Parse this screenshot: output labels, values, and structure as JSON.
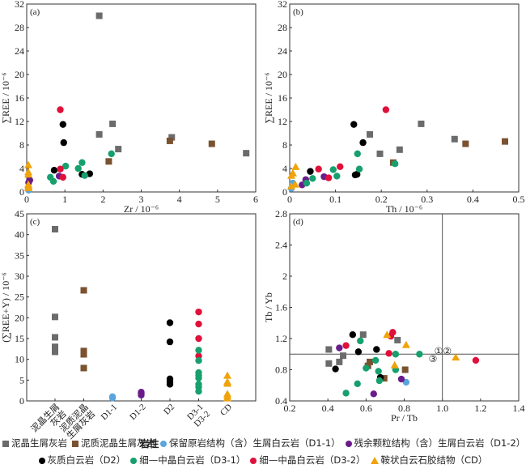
{
  "chart_data": [
    {
      "id": "a",
      "type": "scatter",
      "panel_label": "(a)",
      "xlabel": "Zr / 10⁻⁶",
      "ylabel": "∑REE / 10⁻⁶",
      "xlim": [
        0,
        6
      ],
      "ylim": [
        0,
        32
      ],
      "xticks": [
        0,
        1,
        2,
        3,
        4,
        5,
        6
      ],
      "yticks": [
        0,
        4,
        8,
        12,
        16,
        20,
        24,
        28,
        32
      ],
      "grid": false,
      "series": [
        {
          "group": "mudstone_bioclastic_limestone",
          "points": [
            [
              1.9,
              30.0
            ],
            [
              1.9,
              9.8
            ],
            [
              2.25,
              11.6
            ],
            [
              2.4,
              7.3
            ],
            [
              3.8,
              9.3
            ],
            [
              5.75,
              6.6
            ]
          ]
        },
        {
          "group": "argillaceous_bioclastic_limestone",
          "points": [
            [
              2.15,
              5.2
            ],
            [
              3.75,
              8.7
            ],
            [
              4.85,
              8.2
            ]
          ]
        },
        {
          "group": "D1-1",
          "points": [
            [
              0.03,
              0.6
            ],
            [
              0.05,
              0.3
            ]
          ]
        },
        {
          "group": "D1-2",
          "points": [
            [
              0.08,
              2.0
            ],
            [
              0.05,
              1.6
            ],
            [
              0.85,
              2.7
            ]
          ]
        },
        {
          "group": "D2",
          "points": [
            [
              0.95,
              11.5
            ],
            [
              0.97,
              8.4
            ],
            [
              0.72,
              3.7
            ],
            [
              1.45,
              3.0
            ],
            [
              1.65,
              3.1
            ]
          ]
        },
        {
          "group": "D3-1",
          "points": [
            [
              0.62,
              2.5
            ],
            [
              0.7,
              1.8
            ],
            [
              1.02,
              4.4
            ],
            [
              1.35,
              4.0
            ],
            [
              1.45,
              5.0
            ],
            [
              1.52,
              2.8
            ],
            [
              2.22,
              6.5
            ]
          ]
        },
        {
          "group": "D3-2",
          "points": [
            [
              0.88,
              14.0
            ],
            [
              0.88,
              3.9
            ],
            [
              0.95,
              2.5
            ]
          ]
        },
        {
          "group": "CD",
          "points": [
            [
              0.0,
              4.6
            ],
            [
              0.02,
              3.4
            ],
            [
              0.03,
              3.0
            ],
            [
              0.02,
              1.3
            ],
            [
              0.05,
              1.0
            ],
            [
              0.0,
              0.7
            ]
          ]
        }
      ]
    },
    {
      "id": "b",
      "type": "scatter",
      "panel_label": "(b)",
      "xlabel": "Th / 10⁻⁶",
      "ylabel": "∑REE / 10⁻⁶",
      "xlim": [
        0,
        0.5
      ],
      "ylim": [
        0,
        32
      ],
      "xticks": [
        0,
        0.1,
        0.2,
        0.3,
        0.4,
        0.5
      ],
      "yticks": [
        0,
        4,
        8,
        12,
        16,
        20,
        24,
        28,
        32
      ],
      "grid": false,
      "series": [
        {
          "group": "mudstone_bioclastic_limestone",
          "points": [
            [
              0.175,
              9.8
            ],
            [
              0.197,
              6.5
            ],
            [
              0.24,
              7.2
            ],
            [
              0.287,
              11.6
            ],
            [
              0.36,
              9.0
            ]
          ]
        },
        {
          "group": "argillaceous_bioclastic_limestone",
          "points": [
            [
              0.226,
              5.0
            ],
            [
              0.384,
              8.2
            ],
            [
              0.47,
              8.6
            ]
          ]
        },
        {
          "group": "D1-1",
          "points": [
            [
              0.002,
              0.6
            ],
            [
              0.007,
              1.5
            ]
          ]
        },
        {
          "group": "D1-2",
          "points": [
            [
              0.027,
              1.2
            ],
            [
              0.035,
              2.1
            ],
            [
              0.075,
              2.6
            ]
          ]
        },
        {
          "group": "D2",
          "points": [
            [
              0.14,
              11.5
            ],
            [
              0.16,
              8.4
            ],
            [
              0.045,
              3.5
            ],
            [
              0.143,
              2.9
            ],
            [
              0.147,
              3.0
            ]
          ]
        },
        {
          "group": "D3-1",
          "points": [
            [
              0.037,
              1.5
            ],
            [
              0.05,
              2.3
            ],
            [
              0.095,
              3.8
            ],
            [
              0.103,
              2.7
            ],
            [
              0.148,
              6.5
            ],
            [
              0.152,
              3.9
            ],
            [
              0.23,
              4.8
            ]
          ]
        },
        {
          "group": "D3-2",
          "points": [
            [
              0.21,
              14.0
            ],
            [
              0.063,
              3.9
            ],
            [
              0.085,
              2.4
            ],
            [
              0.11,
              4.3
            ]
          ]
        },
        {
          "group": "CD",
          "points": [
            [
              0.013,
              4.3
            ],
            [
              0.007,
              3.2
            ],
            [
              0.002,
              2.8
            ],
            [
              0.012,
              1.3
            ],
            [
              0.0,
              1.0
            ]
          ]
        }
      ]
    },
    {
      "id": "c",
      "type": "scatter",
      "panel_label": "(c)",
      "xlabel": "岩性",
      "ylabel": "(∑REE+Y) / 10⁻⁶",
      "ylim": [
        0,
        45
      ],
      "yticks": [
        0,
        5,
        10,
        15,
        20,
        25,
        30,
        35,
        40,
        45
      ],
      "categories": [
        [
          "泥晶生屑",
          "灰岩"
        ],
        [
          "泥质泥晶",
          "生屑灰岩"
        ],
        [
          "D1-1"
        ],
        [
          "D1-2"
        ],
        [
          "D2"
        ],
        [
          "D3-1",
          "D3-2"
        ],
        [
          "CD"
        ]
      ],
      "grid": false,
      "series": [
        {
          "group": "mudstone_bioclastic_limestone",
          "category": 0,
          "values": [
            41.3,
            20.2,
            15.3,
            13.0,
            12.5,
            11.8
          ]
        },
        {
          "group": "argillaceous_bioclastic_limestone",
          "category": 1,
          "values": [
            26.6,
            12.0,
            11.2,
            7.9
          ]
        },
        {
          "group": "D1-1",
          "category": 2,
          "values": [
            1.0,
            0.7
          ]
        },
        {
          "group": "D1-2",
          "category": 3,
          "values": [
            2.1,
            1.8,
            1.4
          ]
        },
        {
          "group": "D2",
          "category": 4,
          "values": [
            18.8,
            14.2,
            5.3,
            4.6,
            4.0
          ]
        },
        {
          "group": "D3-2",
          "category": 5,
          "values": [
            21.4,
            18.5,
            15.0,
            10.8
          ]
        },
        {
          "group": "D3-1",
          "category": 5,
          "values": [
            12.2,
            9.7,
            6.8,
            6.1,
            5.5,
            4.0,
            3.3,
            2.3
          ]
        },
        {
          "group": "CD",
          "category": 6,
          "values": [
            6.1,
            4.6,
            4.2,
            1.7,
            1.2,
            0.7
          ]
        }
      ]
    },
    {
      "id": "d",
      "type": "scatter",
      "panel_label": "(d)",
      "xlabel": "Pr / Tb",
      "ylabel": "Tb / Yb",
      "xlim": [
        0.2,
        1.4
      ],
      "ylim": [
        0.4,
        2.8
      ],
      "xticks": [
        0.2,
        0.4,
        0.6,
        0.8,
        1.0,
        1.2,
        1.4
      ],
      "yticks": [
        0.4,
        0.8,
        1.2,
        1.6,
        2.0,
        2.4,
        2.8
      ],
      "grid": false,
      "reference_lines": {
        "x": 1.0,
        "y": 1.0
      },
      "annotations": [
        {
          "text": "①②",
          "x": 1.0,
          "y": 1.04
        },
        {
          "text": "③",
          "x": 0.97,
          "y": 0.94
        }
      ],
      "series": [
        {
          "group": "mudstone_bioclastic_limestone",
          "points": [
            [
              0.405,
              1.06
            ],
            [
              0.405,
              0.88
            ],
            [
              0.46,
              0.9
            ],
            [
              0.48,
              0.98
            ],
            [
              0.585,
              1.25
            ],
            [
              0.765,
              1.18
            ]
          ]
        },
        {
          "group": "argillaceous_bioclastic_limestone",
          "points": [
            [
              0.61,
              0.85
            ],
            [
              0.62,
              0.9
            ],
            [
              0.695,
              0.69
            ],
            [
              0.805,
              0.8
            ]
          ]
        },
        {
          "group": "D1-1",
          "points": [
            [
              0.81,
              0.64
            ]
          ]
        },
        {
          "group": "D1-2",
          "points": [
            [
              0.46,
              1.08
            ],
            [
              0.64,
              0.49
            ],
            [
              0.785,
              0.68
            ]
          ]
        },
        {
          "group": "D2",
          "points": [
            [
              0.53,
              1.25
            ],
            [
              0.56,
              1.03
            ],
            [
              0.655,
              1.06
            ],
            [
              0.44,
              0.81
            ],
            [
              0.675,
              0.7
            ]
          ]
        },
        {
          "group": "D3-1",
          "points": [
            [
              0.57,
              1.17
            ],
            [
              0.495,
              0.5
            ],
            [
              0.555,
              0.62
            ],
            [
              0.6,
              0.82
            ],
            [
              0.65,
              0.92
            ],
            [
              0.665,
              0.78
            ],
            [
              0.67,
              0.66
            ],
            [
              0.755,
              1.0
            ],
            [
              0.755,
              0.8
            ],
            [
              0.88,
              1.0
            ]
          ]
        },
        {
          "group": "D3-2",
          "points": [
            [
              0.495,
              1.11
            ],
            [
              0.72,
              1.01
            ],
            [
              0.73,
              1.23
            ],
            [
              0.74,
              1.28
            ],
            [
              1.175,
              0.92
            ]
          ]
        },
        {
          "group": "CD",
          "points": [
            [
              0.71,
              1.25
            ],
            [
              0.81,
              1.12
            ],
            [
              0.75,
              0.86
            ],
            [
              1.07,
              0.96
            ]
          ]
        }
      ]
    }
  ],
  "groups": {
    "mudstone_bioclastic_limestone": {
      "label": "泥晶生屑灰岩",
      "marker": "square",
      "color": "#6b6b6b"
    },
    "argillaceous_bioclastic_limestone": {
      "label": "泥质泥晶生屑灰岩",
      "marker": "square",
      "color": "#7a5230"
    },
    "D1-1": {
      "label": "保留原岩结构（含）生屑白云岩（D1-1）",
      "marker": "circle",
      "color": "#5aa5dc"
    },
    "D1-2": {
      "label": "残余颗粒结构（含）生屑白云岩（D1-2）",
      "marker": "circle",
      "color": "#6a1b8a"
    },
    "D2": {
      "label": "灰质白云岩（D2）",
      "marker": "circle",
      "color": "#000000"
    },
    "D3-1": {
      "label": "细—中晶白云岩（D3-1）",
      "marker": "circle",
      "color": "#17a06e"
    },
    "D3-2": {
      "label": "细—中晶白云岩（D3-2）",
      "marker": "circle",
      "color": "#e0103a"
    },
    "CD": {
      "label": "鞍状白云石胶结物（CD）",
      "marker": "triangle",
      "color": "#f0a30a"
    }
  },
  "legend": {
    "row1": [
      "mudstone_bioclastic_limestone",
      "argillaceous_bioclastic_limestone",
      "D1-1",
      "D1-2"
    ],
    "row2": [
      "D2",
      "D3-1",
      "D3-2",
      "CD"
    ],
    "placement": "bottom"
  }
}
